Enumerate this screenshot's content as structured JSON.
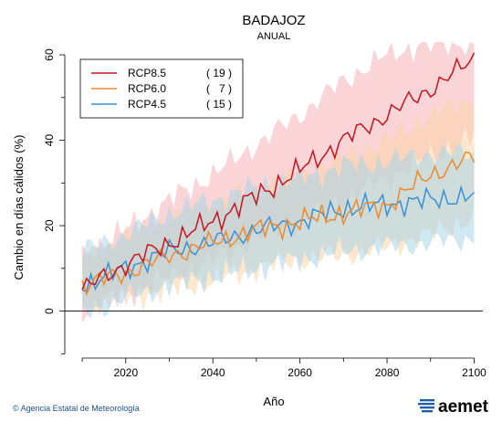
{
  "chart_data": {
    "type": "line",
    "title": "BADAJOZ",
    "subtitle": "ANUAL",
    "xlabel": "Año",
    "ylabel": "Cambio en días cálidos (%)",
    "xlim": [
      2006,
      2102
    ],
    "ylim": [
      -11,
      63
    ],
    "x_ticks": [
      2020,
      2040,
      2060,
      2080,
      2100
    ],
    "y_ticks": [
      0,
      20,
      40,
      60
    ],
    "x_start": 2010,
    "x_end": 2100,
    "zero_line": true,
    "grid": false,
    "legend_position": "top-left",
    "series": [
      {
        "name": "RCP8.5",
        "count_label": "( 19 )",
        "color": "#c8141e",
        "band_color": "#f7b0b8",
        "anchors": [
          [
            2010,
            5
          ],
          [
            2020,
            11
          ],
          [
            2030,
            16
          ],
          [
            2040,
            21
          ],
          [
            2050,
            27
          ],
          [
            2060,
            33
          ],
          [
            2070,
            40
          ],
          [
            2080,
            46
          ],
          [
            2090,
            52
          ],
          [
            2100,
            59
          ]
        ],
        "upper": [
          [
            2010,
            13
          ],
          [
            2020,
            19
          ],
          [
            2030,
            26
          ],
          [
            2040,
            32
          ],
          [
            2050,
            39
          ],
          [
            2060,
            46
          ],
          [
            2070,
            54
          ],
          [
            2080,
            60
          ],
          [
            2090,
            63
          ],
          [
            2100,
            63
          ]
        ],
        "lower": [
          [
            2010,
            0
          ],
          [
            2020,
            4
          ],
          [
            2030,
            8
          ],
          [
            2040,
            12
          ],
          [
            2050,
            17
          ],
          [
            2060,
            21
          ],
          [
            2070,
            26
          ],
          [
            2080,
            31
          ],
          [
            2090,
            36
          ],
          [
            2100,
            41
          ]
        ]
      },
      {
        "name": "RCP6.0",
        "count_label": "(   7 )",
        "color": "#f0892a",
        "band_color": "#fbd3a8",
        "anchors": [
          [
            2010,
            6
          ],
          [
            2020,
            9
          ],
          [
            2030,
            13
          ],
          [
            2040,
            16
          ],
          [
            2050,
            19
          ],
          [
            2060,
            21
          ],
          [
            2070,
            23
          ],
          [
            2080,
            25
          ],
          [
            2090,
            32
          ],
          [
            2100,
            36
          ]
        ],
        "upper": [
          [
            2010,
            13
          ],
          [
            2020,
            17
          ],
          [
            2030,
            21
          ],
          [
            2040,
            25
          ],
          [
            2050,
            28
          ],
          [
            2060,
            32
          ],
          [
            2070,
            36
          ],
          [
            2080,
            40
          ],
          [
            2090,
            46
          ],
          [
            2100,
            50
          ]
        ],
        "lower": [
          [
            2010,
            1
          ],
          [
            2020,
            3
          ],
          [
            2030,
            5
          ],
          [
            2040,
            7
          ],
          [
            2050,
            10
          ],
          [
            2060,
            12
          ],
          [
            2070,
            13
          ],
          [
            2080,
            15
          ],
          [
            2090,
            18
          ],
          [
            2100,
            22
          ]
        ]
      },
      {
        "name": "RCP4.5",
        "count_label": "( 15 )",
        "color": "#3a8fd8",
        "band_color": "#a8d6e8",
        "anchors": [
          [
            2010,
            6
          ],
          [
            2020,
            10
          ],
          [
            2030,
            14
          ],
          [
            2040,
            16
          ],
          [
            2050,
            19
          ],
          [
            2060,
            21
          ],
          [
            2070,
            24
          ],
          [
            2080,
            25
          ],
          [
            2090,
            26
          ],
          [
            2100,
            27
          ]
        ],
        "upper": [
          [
            2010,
            14
          ],
          [
            2020,
            18
          ],
          [
            2030,
            23
          ],
          [
            2040,
            26
          ],
          [
            2050,
            29
          ],
          [
            2060,
            31
          ],
          [
            2070,
            34
          ],
          [
            2080,
            35
          ],
          [
            2090,
            37
          ],
          [
            2100,
            37
          ]
        ],
        "lower": [
          [
            2010,
            -1
          ],
          [
            2020,
            3
          ],
          [
            2030,
            6
          ],
          [
            2040,
            8
          ],
          [
            2050,
            10
          ],
          [
            2060,
            12
          ],
          [
            2070,
            14
          ],
          [
            2080,
            15
          ],
          [
            2090,
            16
          ],
          [
            2100,
            17
          ]
        ]
      }
    ]
  },
  "footer": {
    "credit": "Agencia Estatal de Meteorología",
    "logo_text": "aemet"
  }
}
